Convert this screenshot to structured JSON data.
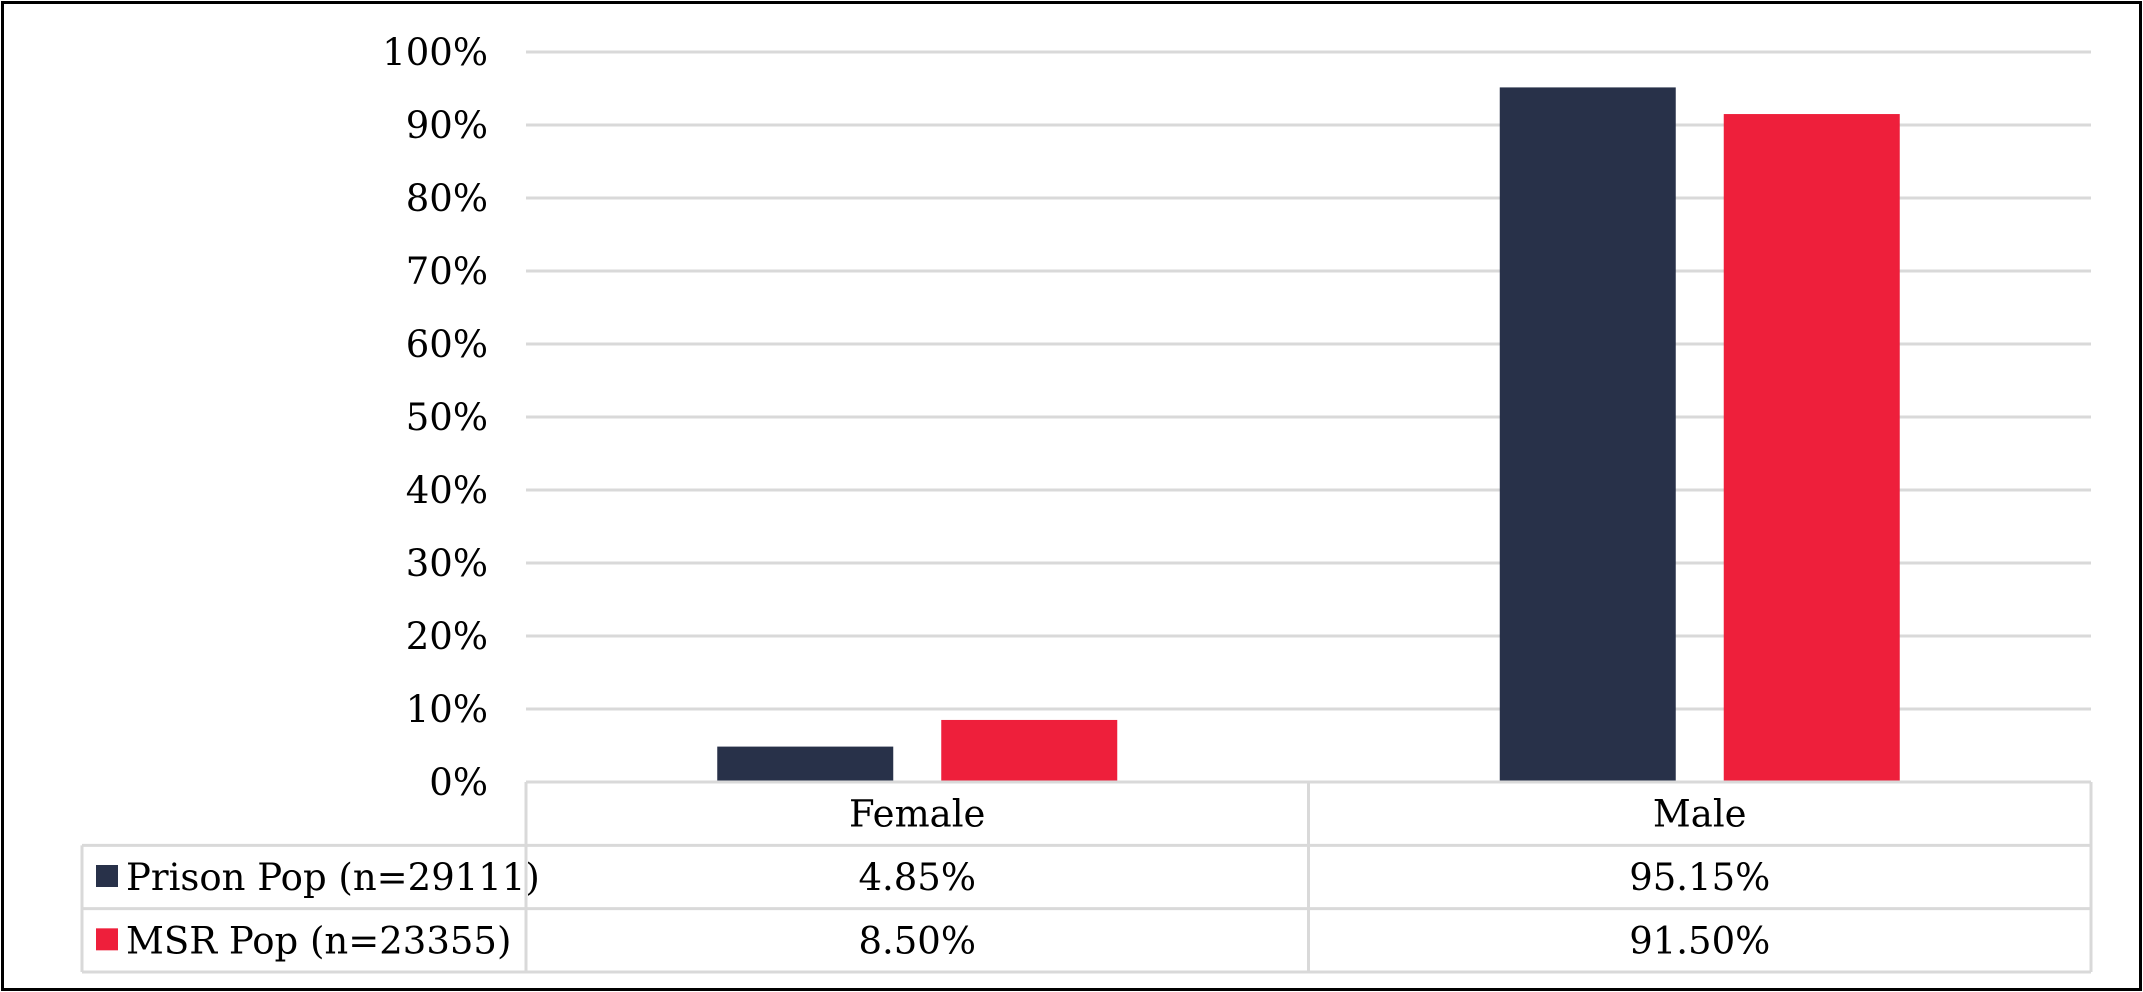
{
  "chart_data": {
    "type": "bar",
    "categories": [
      "Female",
      "Male"
    ],
    "series": [
      {
        "name": "Prison Pop (n=29111)",
        "values": [
          4.85,
          95.15
        ],
        "labels": [
          "4.85%",
          "95.15%"
        ],
        "color": "#283149"
      },
      {
        "name": "MSR Pop (n=23355)",
        "values": [
          8.5,
          91.5
        ],
        "labels": [
          "8.50%",
          "91.50%"
        ],
        "color": "#ee1f3b"
      }
    ],
    "ylim": [
      0,
      100
    ],
    "yticks": [
      0,
      10,
      20,
      30,
      40,
      50,
      60,
      70,
      80,
      90,
      100
    ],
    "ytick_labels": [
      "0%",
      "10%",
      "20%",
      "30%",
      "40%",
      "50%",
      "60%",
      "70%",
      "80%",
      "90%",
      "100%"
    ],
    "grid": true,
    "legend": "data-table",
    "title": "",
    "xlabel": "",
    "ylabel": ""
  }
}
